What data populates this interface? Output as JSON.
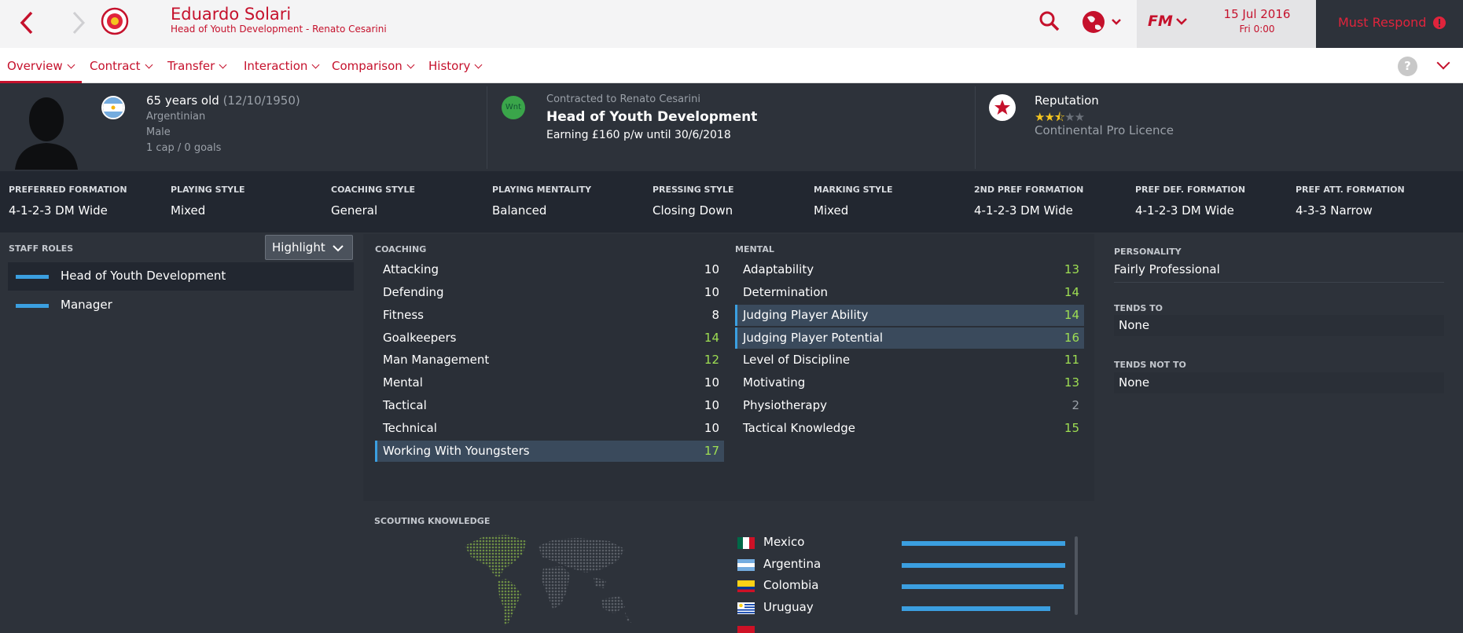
{
  "header": {
    "name": "Eduardo Solari",
    "subtitle": "Head of Youth Development - Renato Cesarini",
    "date": "15 Jul 2016",
    "day": "Fri 0:00",
    "fm_label": "FM",
    "must_respond": "Must Respond"
  },
  "tabs": [
    {
      "label": "Overview"
    },
    {
      "label": "Contract"
    },
    {
      "label": "Transfer"
    },
    {
      "label": "Interaction"
    },
    {
      "label": "Comparison"
    },
    {
      "label": "History"
    }
  ],
  "help_label": "?",
  "profile": {
    "age": "65 years old",
    "dob": "(12/10/1950)",
    "nationality": "Argentinian",
    "gender": "Male",
    "caps": "1 cap / 0 goals",
    "badge": "Wnt",
    "contracted": "Contracted to Renato Cesarini",
    "job": "Head of Youth Development",
    "earning": "Earning £160 p/w until 30/6/2018",
    "reputation_label": "Reputation",
    "reputation_stars": 2.5,
    "licence": "Continental Pro Licence"
  },
  "styles": [
    {
      "k": "PREFERRED FORMATION",
      "v": "4-1-2-3 DM Wide"
    },
    {
      "k": "PLAYING STYLE",
      "v": "Mixed"
    },
    {
      "k": "COACHING STYLE",
      "v": "General"
    },
    {
      "k": "PLAYING MENTALITY",
      "v": "Balanced"
    },
    {
      "k": "PRESSING STYLE",
      "v": "Closing Down"
    },
    {
      "k": "MARKING STYLE",
      "v": "Mixed"
    },
    {
      "k": "2ND PREF FORMATION",
      "v": "4-1-2-3 DM Wide"
    },
    {
      "k": "PREF DEF. FORMATION",
      "v": "4-1-2-3 DM Wide"
    },
    {
      "k": "PREF ATT. FORMATION",
      "v": "4-3-3 Narrow"
    }
  ],
  "staff_roles": {
    "heading": "STAFF ROLES",
    "highlight": "Highlight",
    "items": [
      "Head of Youth Development",
      "Manager"
    ]
  },
  "coaching": {
    "heading": "COACHING",
    "items": [
      {
        "name": "Attacking",
        "value": "10"
      },
      {
        "name": "Defending",
        "value": "10"
      },
      {
        "name": "Fitness",
        "value": "8"
      },
      {
        "name": "Goalkeepers",
        "value": "14"
      },
      {
        "name": "Man Management",
        "value": "12"
      },
      {
        "name": "Mental",
        "value": "10"
      },
      {
        "name": "Tactical",
        "value": "10"
      },
      {
        "name": "Technical",
        "value": "10"
      },
      {
        "name": "Working With Youngsters",
        "value": "17"
      }
    ]
  },
  "mental": {
    "heading": "MENTAL",
    "items": [
      {
        "name": "Adaptability",
        "value": "13"
      },
      {
        "name": "Determination",
        "value": "14"
      },
      {
        "name": "Judging Player Ability",
        "value": "14"
      },
      {
        "name": "Judging Player Potential",
        "value": "16"
      },
      {
        "name": "Level of Discipline",
        "value": "11"
      },
      {
        "name": "Motivating",
        "value": "13"
      },
      {
        "name": "Physiotherapy",
        "value": "2"
      },
      {
        "name": "Tactical Knowledge",
        "value": "15"
      }
    ]
  },
  "personality": {
    "heading": "PERSONALITY",
    "value": "Fairly Professional",
    "tends_to_heading": "TENDS TO",
    "tends_to": "None",
    "tends_not_heading": "TENDS NOT TO",
    "tends_not": "None"
  },
  "scouting": {
    "heading": "SCOUTING KNOWLEDGE",
    "countries": [
      {
        "name": "Mexico",
        "knowledge": 1.0
      },
      {
        "name": "Argentina",
        "knowledge": 1.0
      },
      {
        "name": "Colombia",
        "knowledge": 0.99
      },
      {
        "name": "Uruguay",
        "knowledge": 0.91
      }
    ]
  },
  "colors": {
    "accent": "#c5112c",
    "panel": "#2d323a",
    "bar_blue": "#3b9fe0",
    "good_green": "#9ede53"
  }
}
